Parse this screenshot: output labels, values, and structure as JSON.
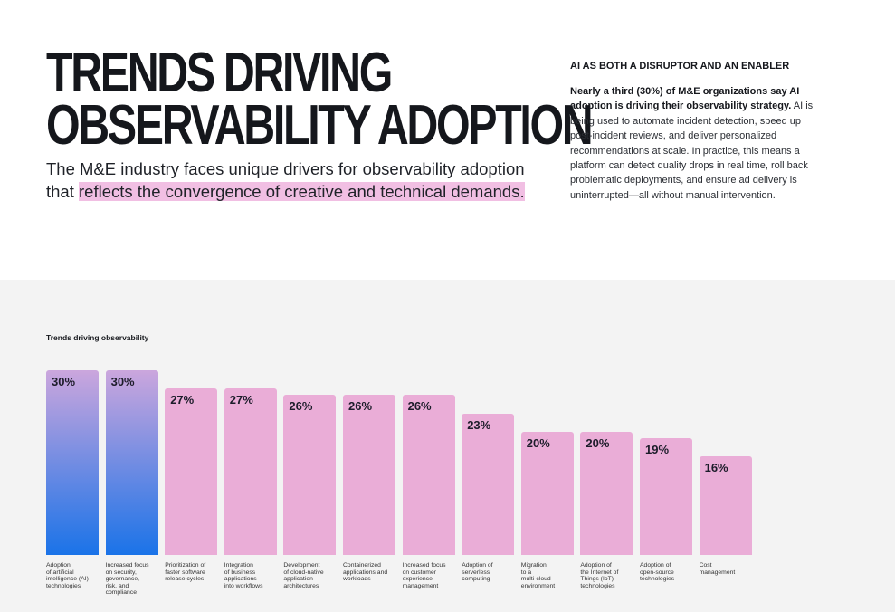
{
  "header": {
    "title": [
      "TRENDS DRIVING",
      "OBSERVABILITY ADOPTION"
    ],
    "subtitle": "The M&E industry faces unique drivers for observability adoption that",
    "subtitle_highlight": "reflects the convergence of creative and technical demands.",
    "side_heading": "AI AS BOTH A DISRUPTOR AND AN ENABLER",
    "side_lead": "Nearly a third (30%) of M&E organizations say AI adoption is driving their observability strategy.",
    "side_body": "AI is being used to automate incident detection, speed up post-incident reviews, and deliver personalized recommendations at scale. In practice, this means a platform can detect quality drops in real time, roll back problematic deployments, and ensure ad delivery is uninterrupted—all without manual intervention."
  },
  "chart_data": {
    "type": "bar",
    "title": "Trends driving observability",
    "categories": [
      "Adoption\nof artificial\nintelligence (AI)\ntechnologies",
      "Increased focus\non security,\ngovernance,\nrisk, and\ncompliance",
      "Prioritization of\nfaster software\nrelease cycles",
      "Integration\nof business\napplications\ninto workflows",
      "Development\nof cloud-native\napplication\narchitectures",
      "Containerized\napplications and\nworkloads",
      "Increased focus\non customer\nexperience\nmanagement",
      "Adoption of\nserverless\ncomputing",
      "Migration\nto a\nmulti-cloud\nenvironment",
      "Adoption of\nthe Internet of\nThings (IoT)\ntechnologies",
      "Adoption of\nopen-source\ntechnologies",
      "Cost\nmanagement"
    ],
    "values": [
      30,
      30,
      27,
      27,
      26,
      26,
      26,
      23,
      20,
      20,
      19,
      16
    ],
    "value_labels": [
      "30%",
      "30%",
      "27%",
      "27%",
      "26%",
      "26%",
      "26%",
      "23%",
      "20%",
      "20%",
      "19%",
      "16%"
    ],
    "colors": [
      "linear-gradient(#cba6dd, #1a73e8)",
      "linear-gradient(#cba6dd, #1a73e8)",
      "#eaadd7",
      "#eaadd7",
      "#eaadd7",
      "#eaadd7",
      "#eaadd7",
      "#eaadd7",
      "#eaadd7",
      "#eaadd7",
      "#eaadd7",
      "#eaadd7"
    ]
  }
}
